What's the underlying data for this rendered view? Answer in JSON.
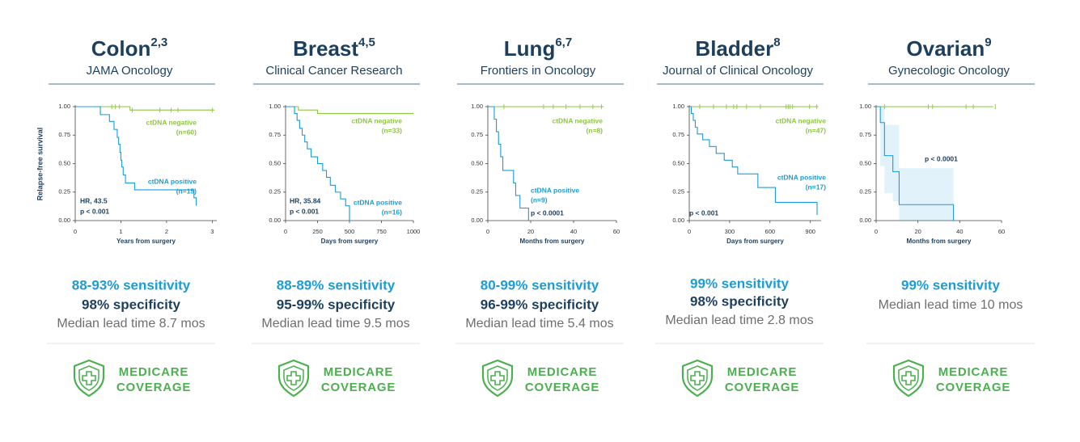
{
  "chart_data": [
    {
      "type": "line",
      "title": "Colon",
      "title_sup": "2,3",
      "subtitle": "JAMA Oncology",
      "y_label": "Relapse-free survival",
      "x_label": "Years from surgery",
      "xlim": [
        0,
        3.1
      ],
      "xticks": [
        0,
        1,
        2,
        3
      ],
      "ylim": [
        0,
        1
      ],
      "yticks": [
        {
          "value": 0,
          "label": "0.00"
        },
        {
          "value": 0.25,
          "label": "0.25"
        },
        {
          "value": 0.5,
          "label": "0.50"
        },
        {
          "value": 0.75,
          "label": "0.75"
        },
        {
          "value": 1,
          "label": "1.00"
        }
      ],
      "series": [
        {
          "name": "ctDNA negative",
          "n_label": "(n=60)",
          "color": "#8dc63f",
          "x": [
            0,
            1.2,
            3.05
          ],
          "values": [
            1,
            0.97,
            0.97
          ],
          "censored": [
            0.8,
            0.88,
            0.97,
            1.25,
            1.85,
            2.1,
            2.25,
            3.0
          ]
        },
        {
          "name": "ctDNA positive",
          "n_label": "(n=15)",
          "color": "#1a9cd8",
          "x": [
            0,
            0.55,
            0.75,
            0.85,
            0.92,
            0.95,
            0.98,
            1.0,
            1.02,
            1.05,
            1.1,
            1.3,
            2.6,
            2.65
          ],
          "values": [
            1,
            0.93,
            0.87,
            0.8,
            0.73,
            0.67,
            0.6,
            0.53,
            0.47,
            0.4,
            0.33,
            0.27,
            0.2,
            0.13
          ]
        }
      ],
      "annotations": [
        "HR, 43.5",
        "p < 0.001"
      ],
      "sensitivity": "88-93% sensitivity",
      "specificity": "98% specificity",
      "lead_time": "Median lead time 8.7 mos",
      "badge": [
        "MEDICARE",
        "COVERAGE"
      ]
    },
    {
      "type": "line",
      "title": "Breast",
      "title_sup": "4,5",
      "subtitle": "Clinical Cancer Research",
      "x_label": "Days from surgery",
      "xlim": [
        0,
        1000
      ],
      "xticks": [
        0,
        250,
        500,
        750,
        1000
      ],
      "ylim": [
        0,
        1
      ],
      "yticks": [
        {
          "value": 0,
          "label": "0.00"
        },
        {
          "value": 0.25,
          "label": "0.25"
        },
        {
          "value": 0.5,
          "label": "0.50"
        },
        {
          "value": 0.75,
          "label": "0.75"
        },
        {
          "value": 1,
          "label": "1.00"
        }
      ],
      "series": [
        {
          "name": "ctDNA negative",
          "n_label": "(n=33)",
          "color": "#8dc63f",
          "x": [
            0,
            100,
            250,
            1000
          ],
          "values": [
            1,
            0.97,
            0.94,
            0.94
          ]
        },
        {
          "name": "ctDNA positive",
          "n_label": "(n=16)",
          "color": "#1a9cd8",
          "x": [
            0,
            70,
            90,
            110,
            130,
            150,
            170,
            200,
            250,
            290,
            320,
            350,
            390,
            430,
            470,
            500
          ],
          "values": [
            1,
            0.94,
            0.88,
            0.81,
            0.75,
            0.69,
            0.63,
            0.56,
            0.5,
            0.44,
            0.38,
            0.31,
            0.25,
            0.19,
            0.13,
            0
          ]
        }
      ],
      "annotations": [
        "HR, 35.84",
        "p < 0.001"
      ],
      "sensitivity": "88-89% sensitivity",
      "specificity": "95-99% specificity",
      "lead_time": "Median lead time 9.5 mos",
      "badge": [
        "MEDICARE",
        "COVERAGE"
      ]
    },
    {
      "type": "line",
      "title": "Lung",
      "title_sup": "6,7",
      "subtitle": "Frontiers in Oncology",
      "x_label": "Months from surgery",
      "xlim": [
        0,
        60
      ],
      "xticks": [
        0,
        20,
        40,
        60
      ],
      "ylim": [
        0,
        1
      ],
      "yticks": [
        {
          "value": 0,
          "label": "0.00"
        },
        {
          "value": 0.25,
          "label": "0.25"
        },
        {
          "value": 0.5,
          "label": "0.50"
        },
        {
          "value": 0.75,
          "label": "0.75"
        },
        {
          "value": 1,
          "label": "1.00"
        }
      ],
      "series": [
        {
          "name": "ctDNA negative",
          "n_label": "(n=8)",
          "color": "#8dc63f",
          "x": [
            0,
            54
          ],
          "values": [
            1,
            1
          ],
          "censored": [
            7.5,
            26,
            30.5,
            36.5,
            43,
            49,
            53
          ]
        },
        {
          "name": "ctDNA positive",
          "n_label": "(n=9)",
          "color": "#1a9cd8",
          "x": [
            0,
            3,
            4,
            5,
            6,
            7,
            12,
            13,
            15,
            19
          ],
          "values": [
            1,
            0.89,
            0.78,
            0.67,
            0.56,
            0.44,
            0.33,
            0.22,
            0.11,
            0
          ]
        }
      ],
      "annotations": [
        "p < 0.0001"
      ],
      "sensitivity": "80-99% sensitivity",
      "specificity": "96-99% specificity",
      "lead_time": "Median lead time 5.4 mos",
      "badge": [
        "MEDICARE",
        "COVERAGE"
      ]
    },
    {
      "type": "line",
      "title": "Bladder",
      "title_sup": "8",
      "subtitle": "Journal of Clinical Oncology",
      "x_label": "Days from surgery",
      "xlim": [
        0,
        980
      ],
      "xticks": [
        0,
        300,
        600,
        900
      ],
      "ylim": [
        0,
        1
      ],
      "yticks": [
        {
          "value": 0,
          "label": "0.00"
        },
        {
          "value": 0.25,
          "label": "0.25"
        },
        {
          "value": 0.5,
          "label": "0.50"
        },
        {
          "value": 0.75,
          "label": "0.75"
        },
        {
          "value": 1,
          "label": "1.00"
        }
      ],
      "series": [
        {
          "name": "ctDNA negative",
          "n_label": "(n=47)",
          "color": "#8dc63f",
          "x": [
            0,
            960
          ],
          "values": [
            1,
            1
          ],
          "censored": [
            78,
            180,
            276,
            330,
            354,
            426,
            528,
            720,
            735,
            750,
            768,
            894,
            948
          ]
        },
        {
          "name": "ctDNA positive",
          "n_label": "(n=17)",
          "color": "#1a9cd8",
          "x": [
            0,
            15,
            30,
            45,
            60,
            100,
            150,
            200,
            260,
            320,
            360,
            510,
            640,
            950
          ],
          "values": [
            1,
            0.94,
            0.88,
            0.82,
            0.76,
            0.71,
            0.65,
            0.59,
            0.53,
            0.47,
            0.41,
            0.29,
            0.16,
            0.05
          ]
        }
      ],
      "annotations": [
        "p < 0.001"
      ],
      "sensitivity": "99% sensitivity",
      "specificity": "98% specificity",
      "lead_time": "Median lead time 2.8 mos",
      "badge": [
        "MEDICARE",
        "COVERAGE"
      ]
    },
    {
      "type": "line",
      "title": "Ovarian",
      "title_sup": "9",
      "subtitle": "Gynecologic Oncology",
      "x_label": "Months from surgery",
      "xlim": [
        0,
        60
      ],
      "xticks": [
        0,
        20,
        40,
        60
      ],
      "ylim": [
        0,
        1
      ],
      "yticks": [
        {
          "value": 0,
          "label": "0.00"
        },
        {
          "value": 0.25,
          "label": "0.25"
        },
        {
          "value": 0.5,
          "label": "0.50"
        },
        {
          "value": 0.75,
          "label": "0.75"
        },
        {
          "value": 1,
          "label": "1.00"
        }
      ],
      "series": [
        {
          "color": "#8dc63f",
          "x": [
            0,
            56
          ],
          "values": [
            1,
            1
          ],
          "censored": [
            4,
            25,
            27,
            43,
            46.5,
            57
          ]
        },
        {
          "color": "#1a9cd8",
          "x": [
            0,
            2,
            4,
            8,
            11,
            37
          ],
          "values": [
            1,
            0.86,
            0.57,
            0.43,
            0.14,
            0
          ],
          "ci_lower": [
            1,
            0.48,
            0.24,
            0.17,
            0,
            0
          ],
          "ci_upper": [
            1,
            1,
            0.84,
            0.84,
            0.46,
            0
          ]
        }
      ],
      "annotations": [
        "p < 0.0001"
      ],
      "sensitivity": "99% sensitivity",
      "lead_time": "Median lead time 10 mos",
      "badge": [
        "MEDICARE",
        "COVERAGE"
      ]
    }
  ]
}
